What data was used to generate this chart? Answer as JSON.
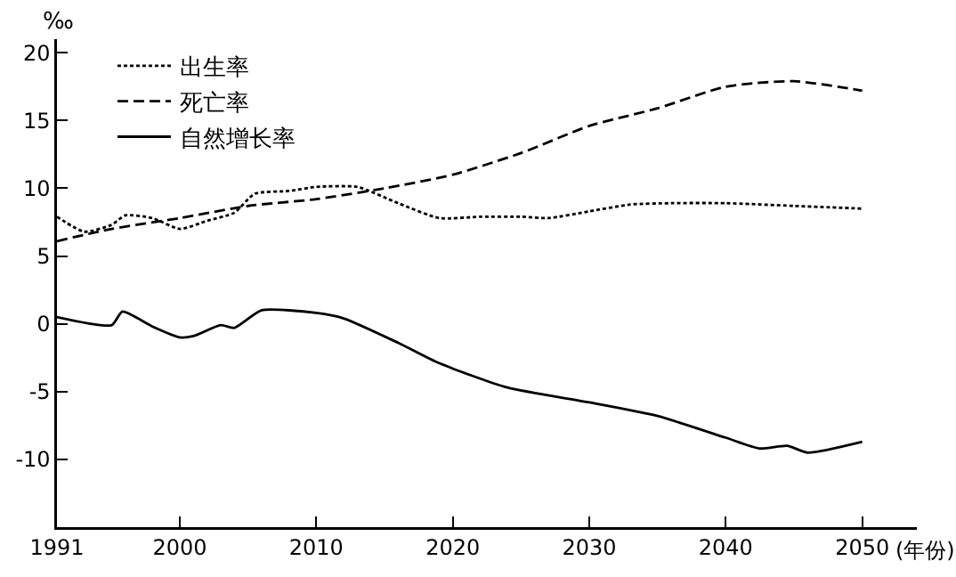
{
  "chart_data": {
    "type": "line",
    "ylabel": "‰",
    "xlabel": "(年份)",
    "xlim": [
      1991,
      2054
    ],
    "ylim": [
      -15,
      21
    ],
    "xticks": [
      1991,
      2000,
      2010,
      2020,
      2030,
      2040,
      2050
    ],
    "yticks": [
      -10,
      -5,
      0,
      5,
      10,
      15,
      20
    ],
    "grid": false,
    "legend": "top left",
    "marker": "none",
    "series": [
      {
        "name": "出生率",
        "color": "#000000",
        "line_style": "dotted",
        "x": [
          1991,
          1993,
          1995,
          1996,
          1998,
          2000,
          2002,
          2004,
          2005.5,
          2008,
          2010,
          2013,
          2016,
          2019,
          2022,
          2025,
          2027,
          2030,
          2033,
          2036,
          2040,
          2045,
          2050
        ],
        "values": [
          7.9,
          6.8,
          7.3,
          8.0,
          7.8,
          7.0,
          7.6,
          8.2,
          9.6,
          9.8,
          10.1,
          10.1,
          8.9,
          7.8,
          7.9,
          7.9,
          7.8,
          8.3,
          8.8,
          8.9,
          8.9,
          8.7,
          8.5
        ]
      },
      {
        "name": "死亡率",
        "color": "#000000",
        "line_style": "dashed",
        "x": [
          1991,
          1995,
          2000,
          2005,
          2010,
          2015,
          2020,
          2025,
          2030,
          2035,
          2040,
          2045,
          2050
        ],
        "values": [
          6.1,
          7.0,
          7.8,
          8.7,
          9.2,
          10.0,
          11.0,
          12.6,
          14.6,
          15.9,
          17.5,
          17.9,
          17.2
        ]
      },
      {
        "name": "自然增长率",
        "color": "#000000",
        "line_style": "solid",
        "x": [
          1991,
          1995,
          1995.8,
          1998,
          2000,
          2001,
          2003,
          2004,
          2006,
          2010,
          2012,
          2016,
          2019,
          2024,
          2030,
          2035,
          2040,
          2042.5,
          2044.5,
          2046,
          2050
        ],
        "values": [
          0.5,
          -0.1,
          0.9,
          -0.2,
          -1.0,
          -0.9,
          -0.1,
          -0.3,
          1.0,
          0.8,
          0.4,
          -1.4,
          -2.9,
          -4.7,
          -5.8,
          -6.8,
          -8.4,
          -9.2,
          -9.0,
          -9.5,
          -8.7
        ]
      }
    ]
  }
}
